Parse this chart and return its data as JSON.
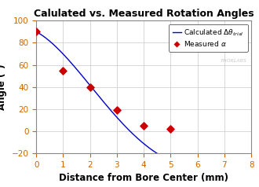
{
  "title": "Calulated vs. Measured Rotation Angles",
  "xlabel": "Distance from Bore Center (mm)",
  "ylabel": "Angle (°)",
  "xlim": [
    0,
    8
  ],
  "ylim": [
    -20,
    100
  ],
  "yticks": [
    -20,
    0,
    20,
    40,
    60,
    80,
    100
  ],
  "xticks": [
    0,
    1,
    2,
    3,
    4,
    5,
    6,
    7,
    8
  ],
  "measured_x": [
    0,
    1,
    2,
    3,
    4,
    5
  ],
  "measured_y": [
    90,
    55,
    40,
    19,
    5,
    2
  ],
  "curve_x_start": 0,
  "curve_x_end": 8,
  "curve_A": 90,
  "curve_decay": 0.15,
  "curve_freq": 0.45,
  "line_color": "#0000cc",
  "marker_color": "#cc0000",
  "background_color": "#ffffff",
  "grid_color": "#c8c8c8",
  "label1": "Calculated $\\Delta\\theta_{trial}$",
  "label2": "Measured $\\alpha$",
  "thorlabs_text": "THORLABS",
  "title_fontsize": 9,
  "axis_label_fontsize": 8.5,
  "tick_fontsize": 7.5,
  "legend_fontsize": 6.5
}
